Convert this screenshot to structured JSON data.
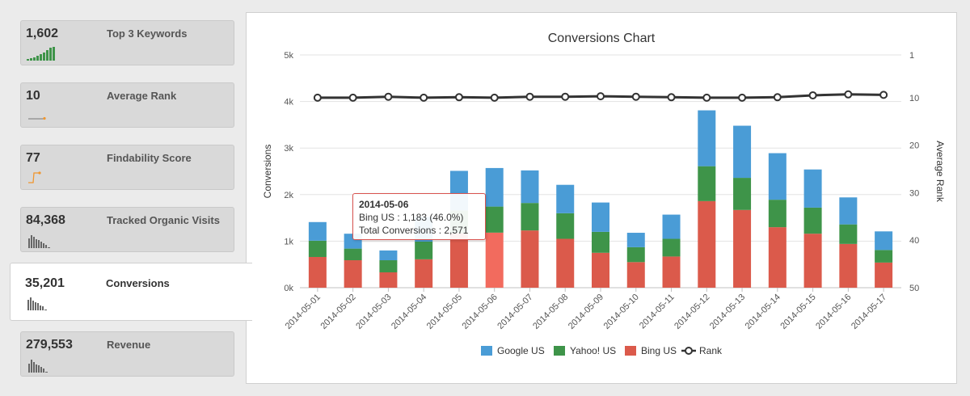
{
  "sidebar": {
    "cards": [
      {
        "value": "1,602",
        "label": "Top 3 Keywords",
        "spark_icon": "green-bars-sparkline"
      },
      {
        "value": "10",
        "label": "Average Rank",
        "spark_icon": "orange-line-sparkline"
      },
      {
        "value": "77",
        "label": "Findability Score",
        "spark_icon": "orange-step-sparkline"
      },
      {
        "value": "84,368",
        "label": "Tracked Organic Visits",
        "spark_icon": "gray-bars-sparkline"
      },
      {
        "value": "35,201",
        "label": "Conversions",
        "spark_icon": "gray-bars-sparkline",
        "active": true
      },
      {
        "value": "279,553",
        "label": "Revenue",
        "spark_icon": "gray-bars-sparkline"
      }
    ]
  },
  "chart_data": {
    "type": "bar",
    "stacked": true,
    "title": "Conversions Chart",
    "ylabel": "Conversions",
    "y2label": "Average Rank",
    "ylim": [
      0,
      5000
    ],
    "y2lim": [
      1,
      50
    ],
    "y2_reversed": true,
    "yticks": [
      "0k",
      "1k",
      "2k",
      "3k",
      "4k",
      "5k"
    ],
    "y2ticks": [
      "1",
      "10",
      "20",
      "30",
      "40",
      "50"
    ],
    "y2tick_values": [
      1,
      10,
      20,
      30,
      40,
      50
    ],
    "categories": [
      "2014-05-01",
      "2014-05-02",
      "2014-05-03",
      "2014-05-04",
      "2014-05-05",
      "2014-05-06",
      "2014-05-07",
      "2014-05-08",
      "2014-05-09",
      "2014-05-10",
      "2014-05-11",
      "2014-05-12",
      "2014-05-13",
      "2014-05-14",
      "2014-05-15",
      "2014-05-16",
      "2014-05-17"
    ],
    "series": [
      {
        "name": "Bing US",
        "color": "#db5a4b",
        "values": [
          660,
          590,
          330,
          610,
          1170,
          1183,
          1230,
          1050,
          750,
          550,
          670,
          1860,
          1670,
          1300,
          1160,
          940,
          540
        ]
      },
      {
        "name": "Yahoo! US",
        "color": "#3e9449",
        "values": [
          350,
          250,
          260,
          380,
          490,
          560,
          590,
          550,
          450,
          320,
          380,
          750,
          690,
          590,
          560,
          420,
          270
        ]
      },
      {
        "name": "Google US",
        "color": "#4a9cd6",
        "values": [
          400,
          320,
          210,
          530,
          850,
          828,
          700,
          610,
          630,
          310,
          520,
          1200,
          1120,
          1000,
          820,
          580,
          400
        ]
      }
    ],
    "line_series": {
      "name": "Rank",
      "color": "#333333",
      "values": [
        10,
        10,
        9.8,
        10,
        9.9,
        10,
        9.8,
        9.8,
        9.7,
        9.8,
        9.9,
        10,
        10,
        9.9,
        9.5,
        9.3,
        9.4
      ]
    },
    "legend": [
      "Google US",
      "Yahoo! US",
      "Bing US",
      "Rank"
    ],
    "legend_position": "bottom",
    "grid": true,
    "highlight_index": 5,
    "highlight_color": "#f26b5e",
    "tooltip": {
      "date": "2014-05-06",
      "line1": "Bing US : 1,183 (46.0%)",
      "line2": "Total Conversions : 2,571"
    }
  }
}
